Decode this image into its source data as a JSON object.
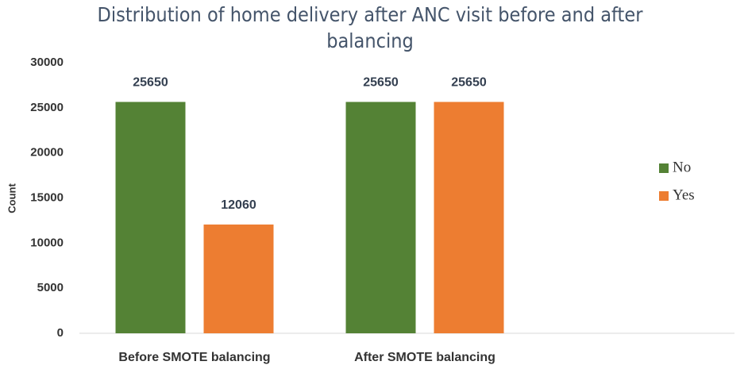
{
  "chart_data": {
    "type": "bar",
    "title": "Distribution of home delivery after ANC visit before and after balancing",
    "y_label": "Count",
    "categories": [
      "Before SMOTE balancing",
      "After SMOTE balancing"
    ],
    "series": [
      {
        "name": "No",
        "color": "#548235",
        "values": [
          25650,
          25650
        ]
      },
      {
        "name": "Yes",
        "color": "#ed7d31",
        "values": [
          12060,
          25650
        ]
      }
    ],
    "ylim": [
      0,
      30000
    ],
    "yticks": [
      0,
      5000,
      10000,
      15000,
      20000,
      25000,
      30000
    ],
    "grid": false,
    "legend": "right",
    "data_labels": true
  }
}
